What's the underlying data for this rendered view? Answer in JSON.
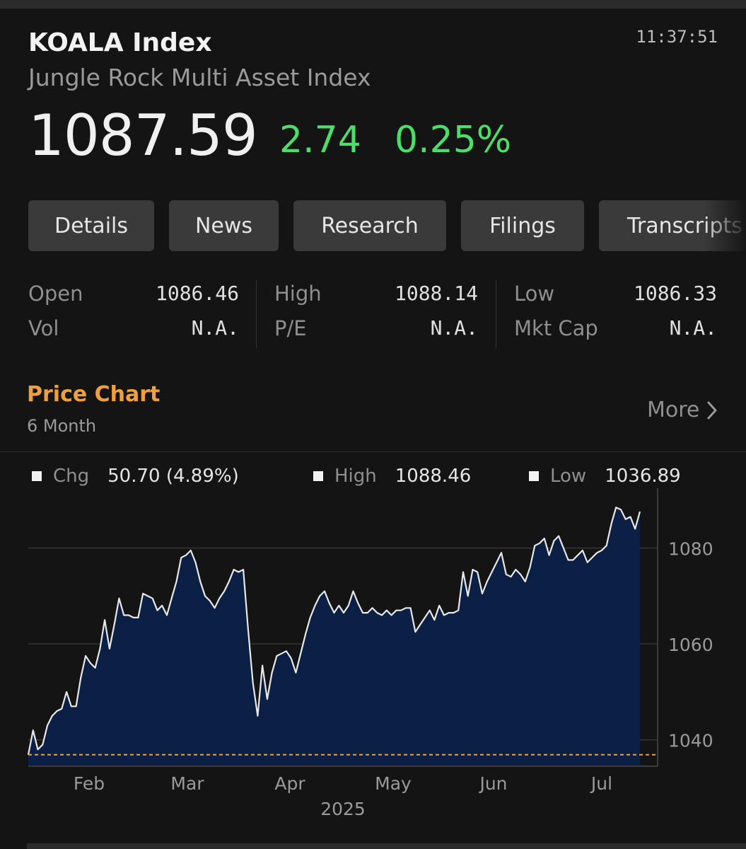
{
  "header": {
    "title": "KOALA Index",
    "subtitle": "Jungle Rock Multi Asset Index",
    "time": "11:37:51",
    "price": "1087.59",
    "change": "2.74",
    "change_pct": "0.25%"
  },
  "tabs": [
    "Details",
    "News",
    "Research",
    "Filings",
    "Transcripts"
  ],
  "stats": {
    "open_label": "Open",
    "open_value": "1086.46",
    "vol_label": "Vol",
    "vol_value": "N.A.",
    "high_label": "High",
    "high_value": "1088.14",
    "pe_label": "P/E",
    "pe_value": "N.A.",
    "low_label": "Low",
    "low_value": "1086.33",
    "mktcap_label": "Mkt Cap",
    "mktcap_value": "N.A."
  },
  "price_chart": {
    "title": "Price Chart",
    "period": "6 Month",
    "more_label": "More",
    "legend": {
      "chg_label": "Chg",
      "chg_value": "50.70 (4.89%)",
      "high_label": "High",
      "high_value": "1088.46",
      "low_label": "Low",
      "low_value": "1036.89"
    }
  },
  "colors": {
    "background": "#141414",
    "positive": "#4cde6a",
    "accent": "#f0a03a",
    "area_fill": "#0b2044",
    "line": "#e8e8e8",
    "low_line": "#f0a03a"
  },
  "chart_data": {
    "type": "area",
    "x_ticks": [
      "Feb",
      "Mar",
      "Apr",
      "May",
      "Jun",
      "Jul"
    ],
    "x_year_label": "2025",
    "y_ticks": [
      1040,
      1060,
      1080
    ],
    "ylim": [
      1034.5,
      1091
    ],
    "low_reference": 1036.89,
    "grid": true,
    "values": [
      1036.89,
      1042,
      1038,
      1039,
      1043,
      1045,
      1046,
      1046.5,
      1050,
      1047,
      1047,
      1053,
      1057.5,
      1056,
      1055,
      1059,
      1065,
      1059,
      1064,
      1069.5,
      1066,
      1066,
      1065.5,
      1065.5,
      1070.5,
      1070,
      1069.5,
      1067,
      1068,
      1066,
      1069.5,
      1073,
      1078,
      1078.5,
      1079.5,
      1077,
      1073,
      1070,
      1069,
      1067.5,
      1069.5,
      1071,
      1073,
      1075.5,
      1075,
      1075.5,
      1063,
      1052,
      1045,
      1055.5,
      1048.5,
      1054,
      1057.5,
      1058,
      1058.5,
      1057,
      1054,
      1058,
      1062,
      1065.5,
      1068,
      1070,
      1071,
      1068.5,
      1066.5,
      1068,
      1066.5,
      1068,
      1071,
      1068.5,
      1066.5,
      1066.5,
      1067.5,
      1066.5,
      1066,
      1067,
      1066,
      1067,
      1067,
      1067.5,
      1067.5,
      1062.5,
      1064,
      1065.5,
      1067,
      1065,
      1068,
      1066,
      1066.5,
      1066.5,
      1067,
      1075,
      1070,
      1075.5,
      1075,
      1070.5,
      1073,
      1075,
      1077,
      1079,
      1074.5,
      1074,
      1075.5,
      1074.5,
      1073,
      1076,
      1080.5,
      1081,
      1082,
      1078.5,
      1081.5,
      1082.5,
      1080,
      1077.5,
      1077.5,
      1078.5,
      1079.5,
      1077,
      1078,
      1079,
      1079.5,
      1080.5,
      1085,
      1088.46,
      1088,
      1086,
      1086.5,
      1084,
      1087.59
    ]
  }
}
